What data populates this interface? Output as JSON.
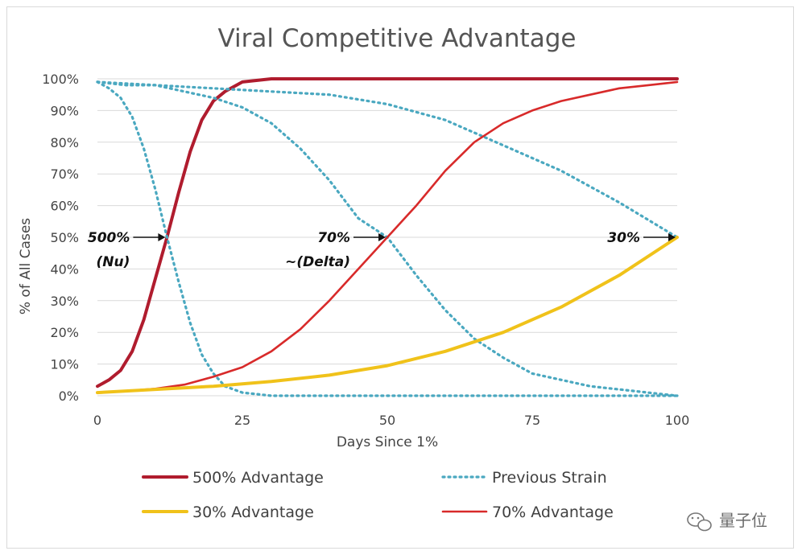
{
  "chart_data": {
    "type": "line",
    "title": "Viral Competitive Advantage",
    "xlabel": "Days Since 1%",
    "ylabel": "% of All Cases",
    "xlim": [
      0,
      100
    ],
    "ylim": [
      0,
      100
    ],
    "x_ticks": [
      "0",
      "25",
      "50",
      "75",
      "100"
    ],
    "y_ticks": [
      "0%",
      "10%",
      "20%",
      "30%",
      "40%",
      "50%",
      "60%",
      "70%",
      "80%",
      "90%",
      "100%"
    ],
    "grid": "horizontal",
    "legend_position": "bottom",
    "series": [
      {
        "name": "500% Advantage",
        "color": "#b01c2e",
        "style": "solid-thick",
        "x": [
          0,
          2,
          4,
          6,
          8,
          10,
          12,
          14,
          16,
          18,
          20,
          22,
          25,
          30,
          40,
          60,
          80,
          100
        ],
        "y": [
          3,
          5,
          8,
          14,
          24,
          37,
          50,
          64,
          77,
          87,
          93,
          96,
          99,
          100,
          100,
          100,
          100,
          100
        ]
      },
      {
        "name": "Previous Strain",
        "color": "#4aa8c0",
        "style": "dotted",
        "x": [
          0,
          2,
          4,
          6,
          8,
          10,
          12,
          14,
          16,
          18,
          20,
          22,
          25,
          30,
          40,
          60,
          80,
          100
        ],
        "y": [
          99,
          97,
          94,
          88,
          78,
          65,
          50,
          36,
          23,
          13,
          7,
          3,
          1,
          0,
          0,
          0,
          0,
          0
        ]
      },
      {
        "name": "Previous Strain",
        "color": "#4aa8c0",
        "style": "dotted",
        "x": [
          0,
          5,
          10,
          15,
          20,
          25,
          30,
          35,
          40,
          45,
          50,
          55,
          60,
          65,
          70,
          75,
          80,
          85,
          90,
          95,
          100
        ],
        "y": [
          99,
          98,
          98,
          96,
          94,
          91,
          86,
          78,
          68,
          56,
          50,
          38,
          27,
          18,
          12,
          7,
          5,
          3,
          2,
          1,
          0
        ]
      },
      {
        "name": "Previous Strain",
        "color": "#4aa8c0",
        "style": "dotted",
        "x": [
          0,
          10,
          20,
          30,
          40,
          50,
          60,
          70,
          80,
          90,
          100
        ],
        "y": [
          99,
          98,
          97,
          96,
          95,
          92,
          87,
          79,
          71,
          61,
          50
        ]
      },
      {
        "name": "70% Advantage",
        "color": "#d82a2a",
        "style": "solid",
        "x": [
          0,
          5,
          10,
          15,
          20,
          25,
          30,
          35,
          40,
          45,
          50,
          55,
          60,
          65,
          70,
          75,
          80,
          85,
          90,
          95,
          100
        ],
        "y": [
          1,
          1.5,
          2.2,
          3.5,
          6,
          9,
          14,
          21,
          30,
          40,
          50,
          60,
          71,
          80,
          86,
          90,
          93,
          95,
          97,
          98,
          99
        ]
      },
      {
        "name": "30% Advantage",
        "color": "#f0c21a",
        "style": "solid-thick",
        "x": [
          0,
          10,
          20,
          30,
          40,
          50,
          60,
          70,
          80,
          90,
          100
        ],
        "y": [
          1,
          2,
          3,
          4.5,
          6.5,
          9.5,
          14,
          20,
          28,
          38,
          50
        ]
      }
    ],
    "annotations": [
      {
        "lines": [
          "500%",
          "(Nu)"
        ],
        "x": 12,
        "y": 50
      },
      {
        "lines": [
          "70%",
          "~(Delta)"
        ],
        "x": 50,
        "y": 50
      },
      {
        "lines": [
          "30%"
        ],
        "x": 100,
        "y": 50
      }
    ],
    "legend": [
      {
        "label": "500% Advantage",
        "color": "#b01c2e",
        "style": "solid-thick"
      },
      {
        "label": "Previous Strain",
        "color": "#4aa8c0",
        "style": "dotted"
      },
      {
        "label": "30% Advantage",
        "color": "#f0c21a",
        "style": "solid-thick"
      },
      {
        "label": "70% Advantage",
        "color": "#d82a2a",
        "style": "solid"
      }
    ]
  },
  "watermark": {
    "text": "量子位",
    "icon": "wechat-icon"
  }
}
